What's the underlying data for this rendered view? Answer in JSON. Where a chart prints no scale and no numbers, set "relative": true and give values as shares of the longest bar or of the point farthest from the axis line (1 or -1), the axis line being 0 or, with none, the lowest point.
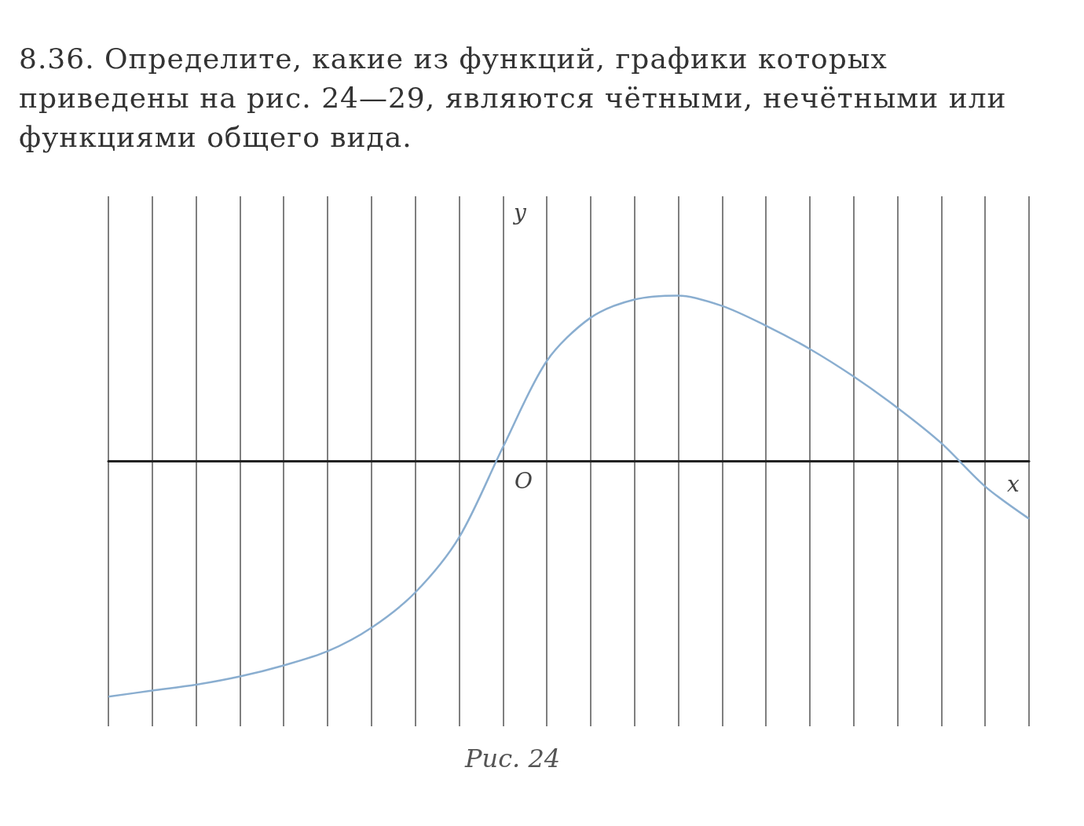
{
  "chart_data": {
    "type": "line",
    "title": "8.36. Определите, какие из функций, графики которых приведены на рис. 24—29, являются чётными, нечётными или функциями общего вида.",
    "xlabel": "x",
    "ylabel": "y",
    "annotations": [
      "O",
      "Рис. 24"
    ],
    "categories": [
      null,
      null,
      null,
      null,
      null,
      null,
      null,
      null,
      null,
      null,
      null,
      null,
      null,
      null,
      null,
      null,
      null,
      null,
      null,
      null,
      null,
      null
    ],
    "series": [
      {
        "color": "#8aaed0",
        "values": [
          -1,
          -0.974,
          -0.949,
          -0.914,
          -0.867,
          -0.807,
          -0.707,
          -0.557,
          -0.323,
          0.06,
          0.426,
          0.61,
          0.687,
          0.704,
          0.66,
          0.576,
          0.477,
          0.36,
          0.227,
          0.077,
          -0.107,
          -0.244
        ]
      }
    ],
    "relative": true,
    "grid": "x",
    "marker": "none",
    "line_style": "solid"
  }
}
